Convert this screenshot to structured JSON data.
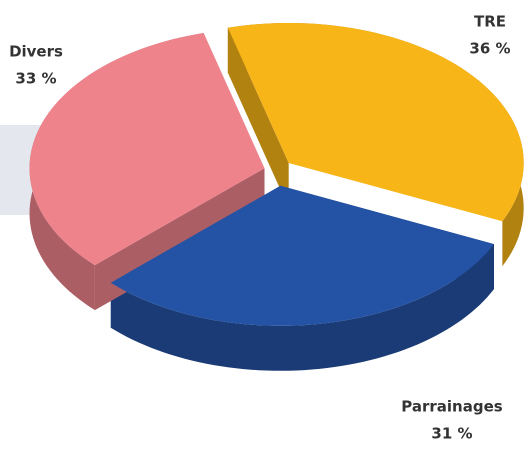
{
  "chart_data": {
    "type": "pie",
    "categories": [
      "TRE",
      "Parrainages",
      "Divers"
    ],
    "values": [
      36,
      31,
      33
    ],
    "value_labels": [
      "36 %",
      "31 %",
      "33 %"
    ],
    "colors": [
      "#f7b518",
      "#2452a4",
      "#ef838c"
    ]
  }
}
